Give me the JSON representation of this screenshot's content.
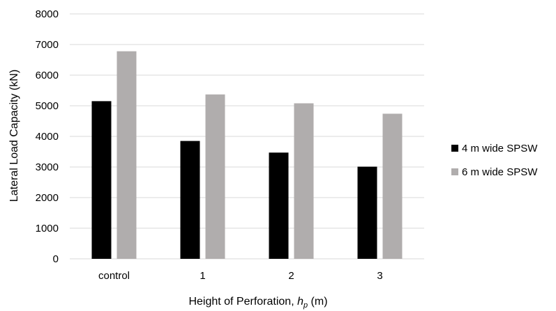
{
  "chart_data": {
    "type": "bar",
    "title": "",
    "categories": [
      "control",
      "1",
      "2",
      "3"
    ],
    "series": [
      {
        "name": "4 m wide SPSW",
        "values": [
          5150,
          3850,
          3470,
          3010
        ],
        "color": "#000000"
      },
      {
        "name": "6 m wide SPSW",
        "values": [
          6780,
          5370,
          5080,
          4740
        ],
        "color": "#b0adad"
      }
    ],
    "xlabel": {
      "prefix": "Height of Perforation, ",
      "symbol": "h",
      "subscript": "p",
      "suffix": " (m)"
    },
    "ylabel": "Lateral  Load Capacity (kN)",
    "ylim": [
      0,
      8000
    ],
    "yticks": [
      0,
      1000,
      2000,
      3000,
      4000,
      5000,
      6000,
      7000,
      8000
    ],
    "grid": true,
    "gridlines_color": "#d9d9d9",
    "legend_position": "right"
  }
}
